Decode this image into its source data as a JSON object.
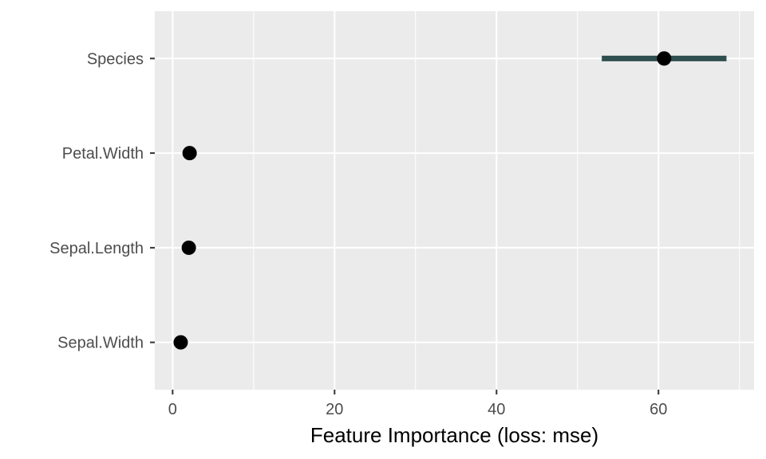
{
  "chart_data": {
    "type": "scatter",
    "title": "",
    "xlabel": "Feature Importance (loss: mse)",
    "ylabel": "",
    "xlim": [
      -2.2,
      71.8
    ],
    "x_ticks": [
      0,
      20,
      40,
      60
    ],
    "grid": true,
    "legend": "none",
    "categories": [
      "Species",
      "Petal.Width",
      "Sepal.Length",
      "Sepal.Width"
    ],
    "series": [
      {
        "values": [
          60.7,
          2.1,
          2.0,
          1.0
        ],
        "lower": [
          53.0,
          2.1,
          2.0,
          1.0
        ],
        "upper": [
          68.4,
          2.1,
          2.0,
          1.0
        ]
      }
    ],
    "colors": {
      "panel": "#ebebeb",
      "grid_major": "#ffffff",
      "point": "#000000",
      "interval": "#2f4f4f"
    }
  }
}
